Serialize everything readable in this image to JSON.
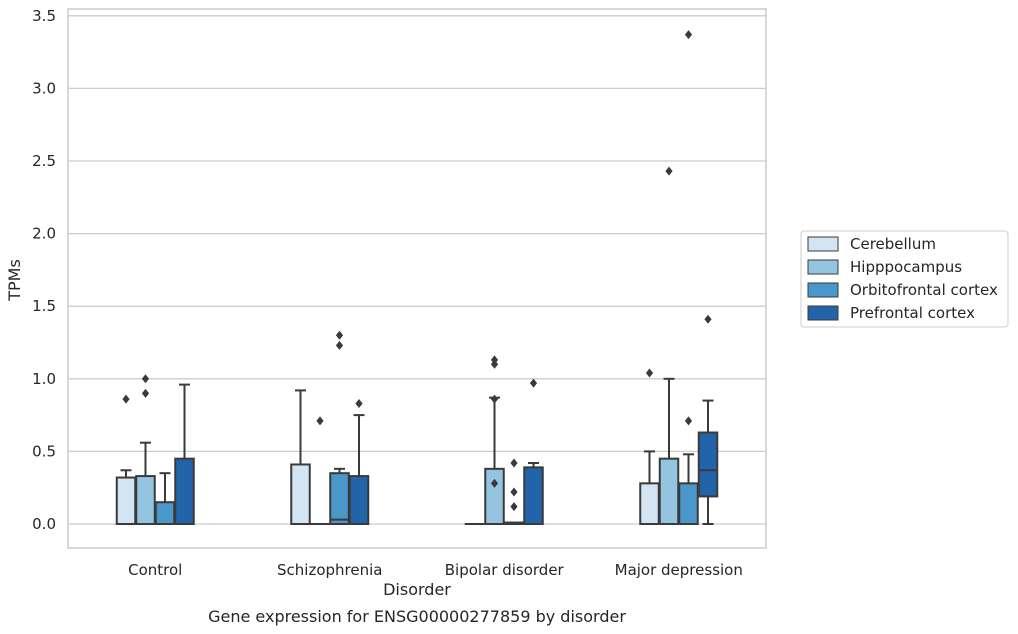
{
  "caption": "Gene expression for ENSG00000277859 by disorder",
  "chart_data": {
    "type": "box",
    "xlabel": "Disorder",
    "ylabel": "TPMs",
    "ylim": [
      -0.17,
      3.56
    ],
    "yticks": [
      0.0,
      0.5,
      1.0,
      1.5,
      2.0,
      2.5,
      3.0,
      3.5
    ],
    "grid": "horizontal",
    "legend_position": "right",
    "categories": [
      "Control",
      "Schizophrenia",
      "Bipolar disorder",
      "Major depression"
    ],
    "series": [
      {
        "name": "Cerebellum",
        "color": "#d3e4f3",
        "boxes": [
          {
            "whisker_low": 0.0,
            "q1": 0.0,
            "median": 0.0,
            "q3": 0.32,
            "whisker_high": 0.37,
            "outliers": [
              0.86
            ]
          },
          {
            "whisker_low": 0.0,
            "q1": 0.0,
            "median": 0.0,
            "q3": 0.41,
            "whisker_high": 0.92,
            "outliers": []
          },
          {
            "whisker_low": 0.0,
            "q1": 0.0,
            "median": 0.0,
            "q3": 0.0,
            "whisker_high": 0.0,
            "outliers": []
          },
          {
            "whisker_low": 0.0,
            "q1": 0.0,
            "median": 0.0,
            "q3": 0.28,
            "whisker_high": 0.5,
            "outliers": [
              1.04
            ]
          }
        ]
      },
      {
        "name": "Hipppocampus",
        "color": "#94c4df",
        "boxes": [
          {
            "whisker_low": 0.0,
            "q1": 0.0,
            "median": 0.0,
            "q3": 0.33,
            "whisker_high": 0.56,
            "outliers": [
              0.9,
              1.0
            ]
          },
          {
            "whisker_low": 0.0,
            "q1": 0.0,
            "median": 0.0,
            "q3": 0.0,
            "whisker_high": 0.0,
            "outliers": [
              0.71
            ]
          },
          {
            "whisker_low": 0.0,
            "q1": 0.0,
            "median": 0.0,
            "q3": 0.38,
            "whisker_high": 0.87,
            "outliers": [
              0.28,
              0.86,
              1.1,
              1.13
            ]
          },
          {
            "whisker_low": 0.0,
            "q1": 0.0,
            "median": 0.0,
            "q3": 0.45,
            "whisker_high": 1.0,
            "outliers": [
              2.43
            ]
          }
        ]
      },
      {
        "name": "Orbitofrontal cortex",
        "color": "#4a98c9",
        "boxes": [
          {
            "whisker_low": 0.0,
            "q1": 0.0,
            "median": 0.0,
            "q3": 0.15,
            "whisker_high": 0.35,
            "outliers": []
          },
          {
            "whisker_low": 0.0,
            "q1": 0.0,
            "median": 0.03,
            "q3": 0.35,
            "whisker_high": 0.38,
            "outliers": [
              1.23,
              1.3
            ]
          },
          {
            "whisker_low": 0.0,
            "q1": 0.0,
            "median": 0.0,
            "q3": 0.01,
            "whisker_high": 0.01,
            "outliers": [
              0.12,
              0.22,
              0.42
            ]
          },
          {
            "whisker_low": 0.0,
            "q1": 0.0,
            "median": 0.0,
            "q3": 0.28,
            "whisker_high": 0.48,
            "outliers": [
              0.71,
              3.37
            ]
          }
        ]
      },
      {
        "name": "Prefrontal cortex",
        "color": "#2164a9",
        "boxes": [
          {
            "whisker_low": 0.0,
            "q1": 0.0,
            "median": 0.0,
            "q3": 0.45,
            "whisker_high": 0.96,
            "outliers": []
          },
          {
            "whisker_low": 0.0,
            "q1": 0.0,
            "median": 0.0,
            "q3": 0.33,
            "whisker_high": 0.75,
            "outliers": [
              0.83
            ]
          },
          {
            "whisker_low": 0.0,
            "q1": 0.0,
            "median": 0.0,
            "q3": 0.39,
            "whisker_high": 0.42,
            "outliers": [
              0.97
            ]
          },
          {
            "whisker_low": 0.0,
            "q1": 0.19,
            "median": 0.37,
            "q3": 0.63,
            "whisker_high": 0.85,
            "outliers": [
              1.41
            ]
          }
        ]
      }
    ]
  }
}
